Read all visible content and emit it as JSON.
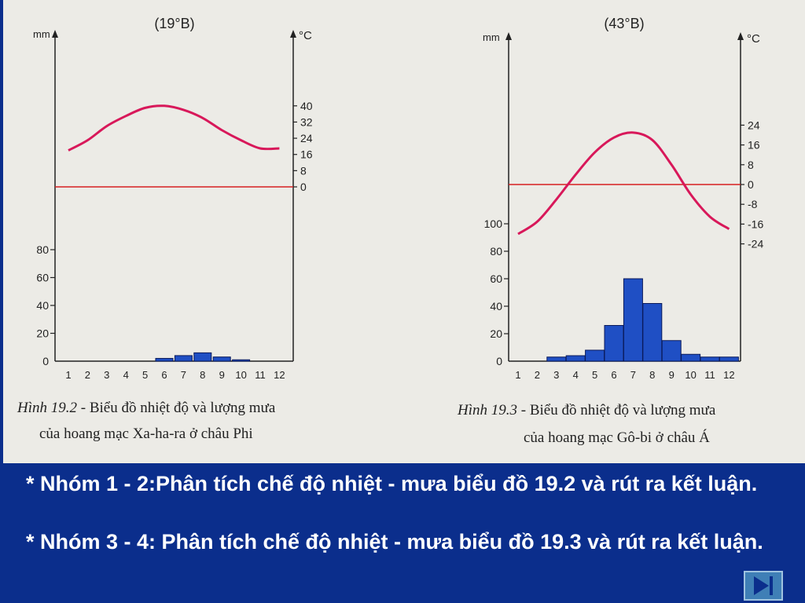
{
  "chart_data": [
    {
      "type": "climate",
      "latitude_label": "(19°B)",
      "precip_unit": "mm",
      "temp_unit": "°C",
      "x": [
        1,
        2,
        3,
        4,
        5,
        6,
        7,
        8,
        9,
        10,
        11,
        12
      ],
      "precip_ticks": [
        0,
        20,
        40,
        60,
        80
      ],
      "temp_ticks": [
        0,
        8,
        16,
        24,
        32,
        40
      ],
      "precip_values": [
        0,
        0,
        0,
        0,
        0,
        2,
        4,
        6,
        3,
        1,
        0,
        0
      ],
      "temp_values": [
        18,
        23,
        30,
        35,
        39,
        40,
        38,
        34,
        28,
        23,
        19,
        19
      ],
      "caption_fig": "Hình 19.2",
      "caption_text": " - Biểu đồ nhiệt độ và lượng mưa",
      "caption_line2": "của hoang mạc Xa-ha-ra ở châu Phi"
    },
    {
      "type": "climate",
      "latitude_label": "(43°B)",
      "precip_unit": "mm",
      "temp_unit": "°C",
      "x": [
        1,
        2,
        3,
        4,
        5,
        6,
        7,
        8,
        9,
        10,
        11,
        12
      ],
      "precip_ticks": [
        0,
        20,
        40,
        60,
        80,
        100
      ],
      "temp_ticks": [
        -24,
        -16,
        -8,
        0,
        8,
        16,
        24
      ],
      "precip_values": [
        0,
        0,
        3,
        4,
        8,
        26,
        60,
        42,
        15,
        5,
        3,
        3
      ],
      "temp_values": [
        -20,
        -15,
        -6,
        4,
        13,
        19,
        21,
        18,
        8,
        -4,
        -13,
        -18
      ],
      "caption_fig": "Hình 19.3",
      "caption_text": " - Biểu đồ nhiệt độ và lượng mưa",
      "caption_line2": "của hoang mạc Gô-bi ở châu Á"
    }
  ],
  "bullets": [
    "* Nhóm 1 - 2:Phân tích chế độ nhiệt - mưa biểu đồ 19.2 và rút ra kết luận.",
    "* Nhóm 3 - 4: Phân tích chế độ nhiệt - mưa biểu đồ 19.3 và rút ra kết luận."
  ],
  "colors": {
    "background": "#0b2e8c",
    "page": "#ecebe6",
    "temperature_curve": "#d8185a",
    "zero_line": "#d62020",
    "bars": "#1f4fc4"
  },
  "icons": {
    "nav_button": "next-slide-icon"
  }
}
